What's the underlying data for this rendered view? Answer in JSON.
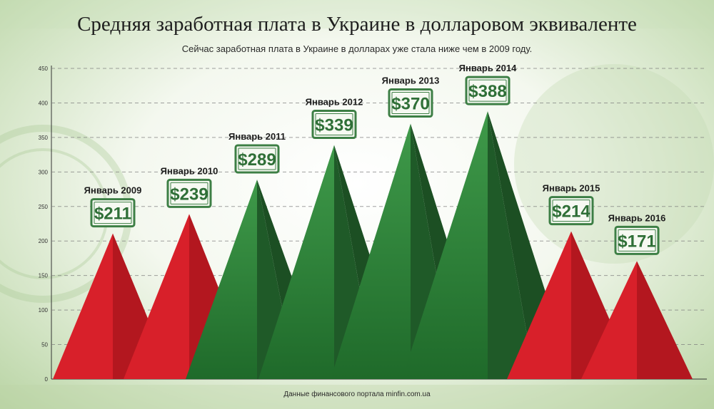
{
  "title": "Средняя заработная плата в Украине в долларовом эквиваленте",
  "subtitle": "Сейчас заработная плата в Украине в долларах уже стала ниже чем в 2009 году.",
  "source": "Данные финансового портала minfin.com.ua",
  "colors": {
    "decline": "#d8202a",
    "growth": "#2f8a3c",
    "growth_dark": "#1f5a28",
    "label_border": "#3d7f45"
  },
  "chart_data": {
    "type": "area",
    "title": "Средняя заработная плата в Украине в долларовом эквиваленте",
    "ylim": [
      0,
      450
    ],
    "yticks": [
      "0",
      "50",
      "100",
      "150",
      "200",
      "250",
      "300",
      "350",
      "400",
      "450"
    ],
    "grid": true,
    "series": [
      {
        "label": "Январь 2009",
        "value": 211,
        "value_label": "$211",
        "trend": "down"
      },
      {
        "label": "Январь 2010",
        "value": 239,
        "value_label": "$239",
        "trend": "down"
      },
      {
        "label": "Январь 2011",
        "value": 289,
        "value_label": "$289",
        "trend": "up"
      },
      {
        "label": "Январь 2012",
        "value": 339,
        "value_label": "$339",
        "trend": "up"
      },
      {
        "label": "Январь 2013",
        "value": 370,
        "value_label": "$370",
        "trend": "up"
      },
      {
        "label": "Январь 2014",
        "value": 388,
        "value_label": "$388",
        "trend": "up"
      },
      {
        "label": "Январь 2015",
        "value": 214,
        "value_label": "$214",
        "trend": "down"
      },
      {
        "label": "Январь 2016",
        "value": 171,
        "value_label": "$171",
        "trend": "down"
      }
    ]
  }
}
